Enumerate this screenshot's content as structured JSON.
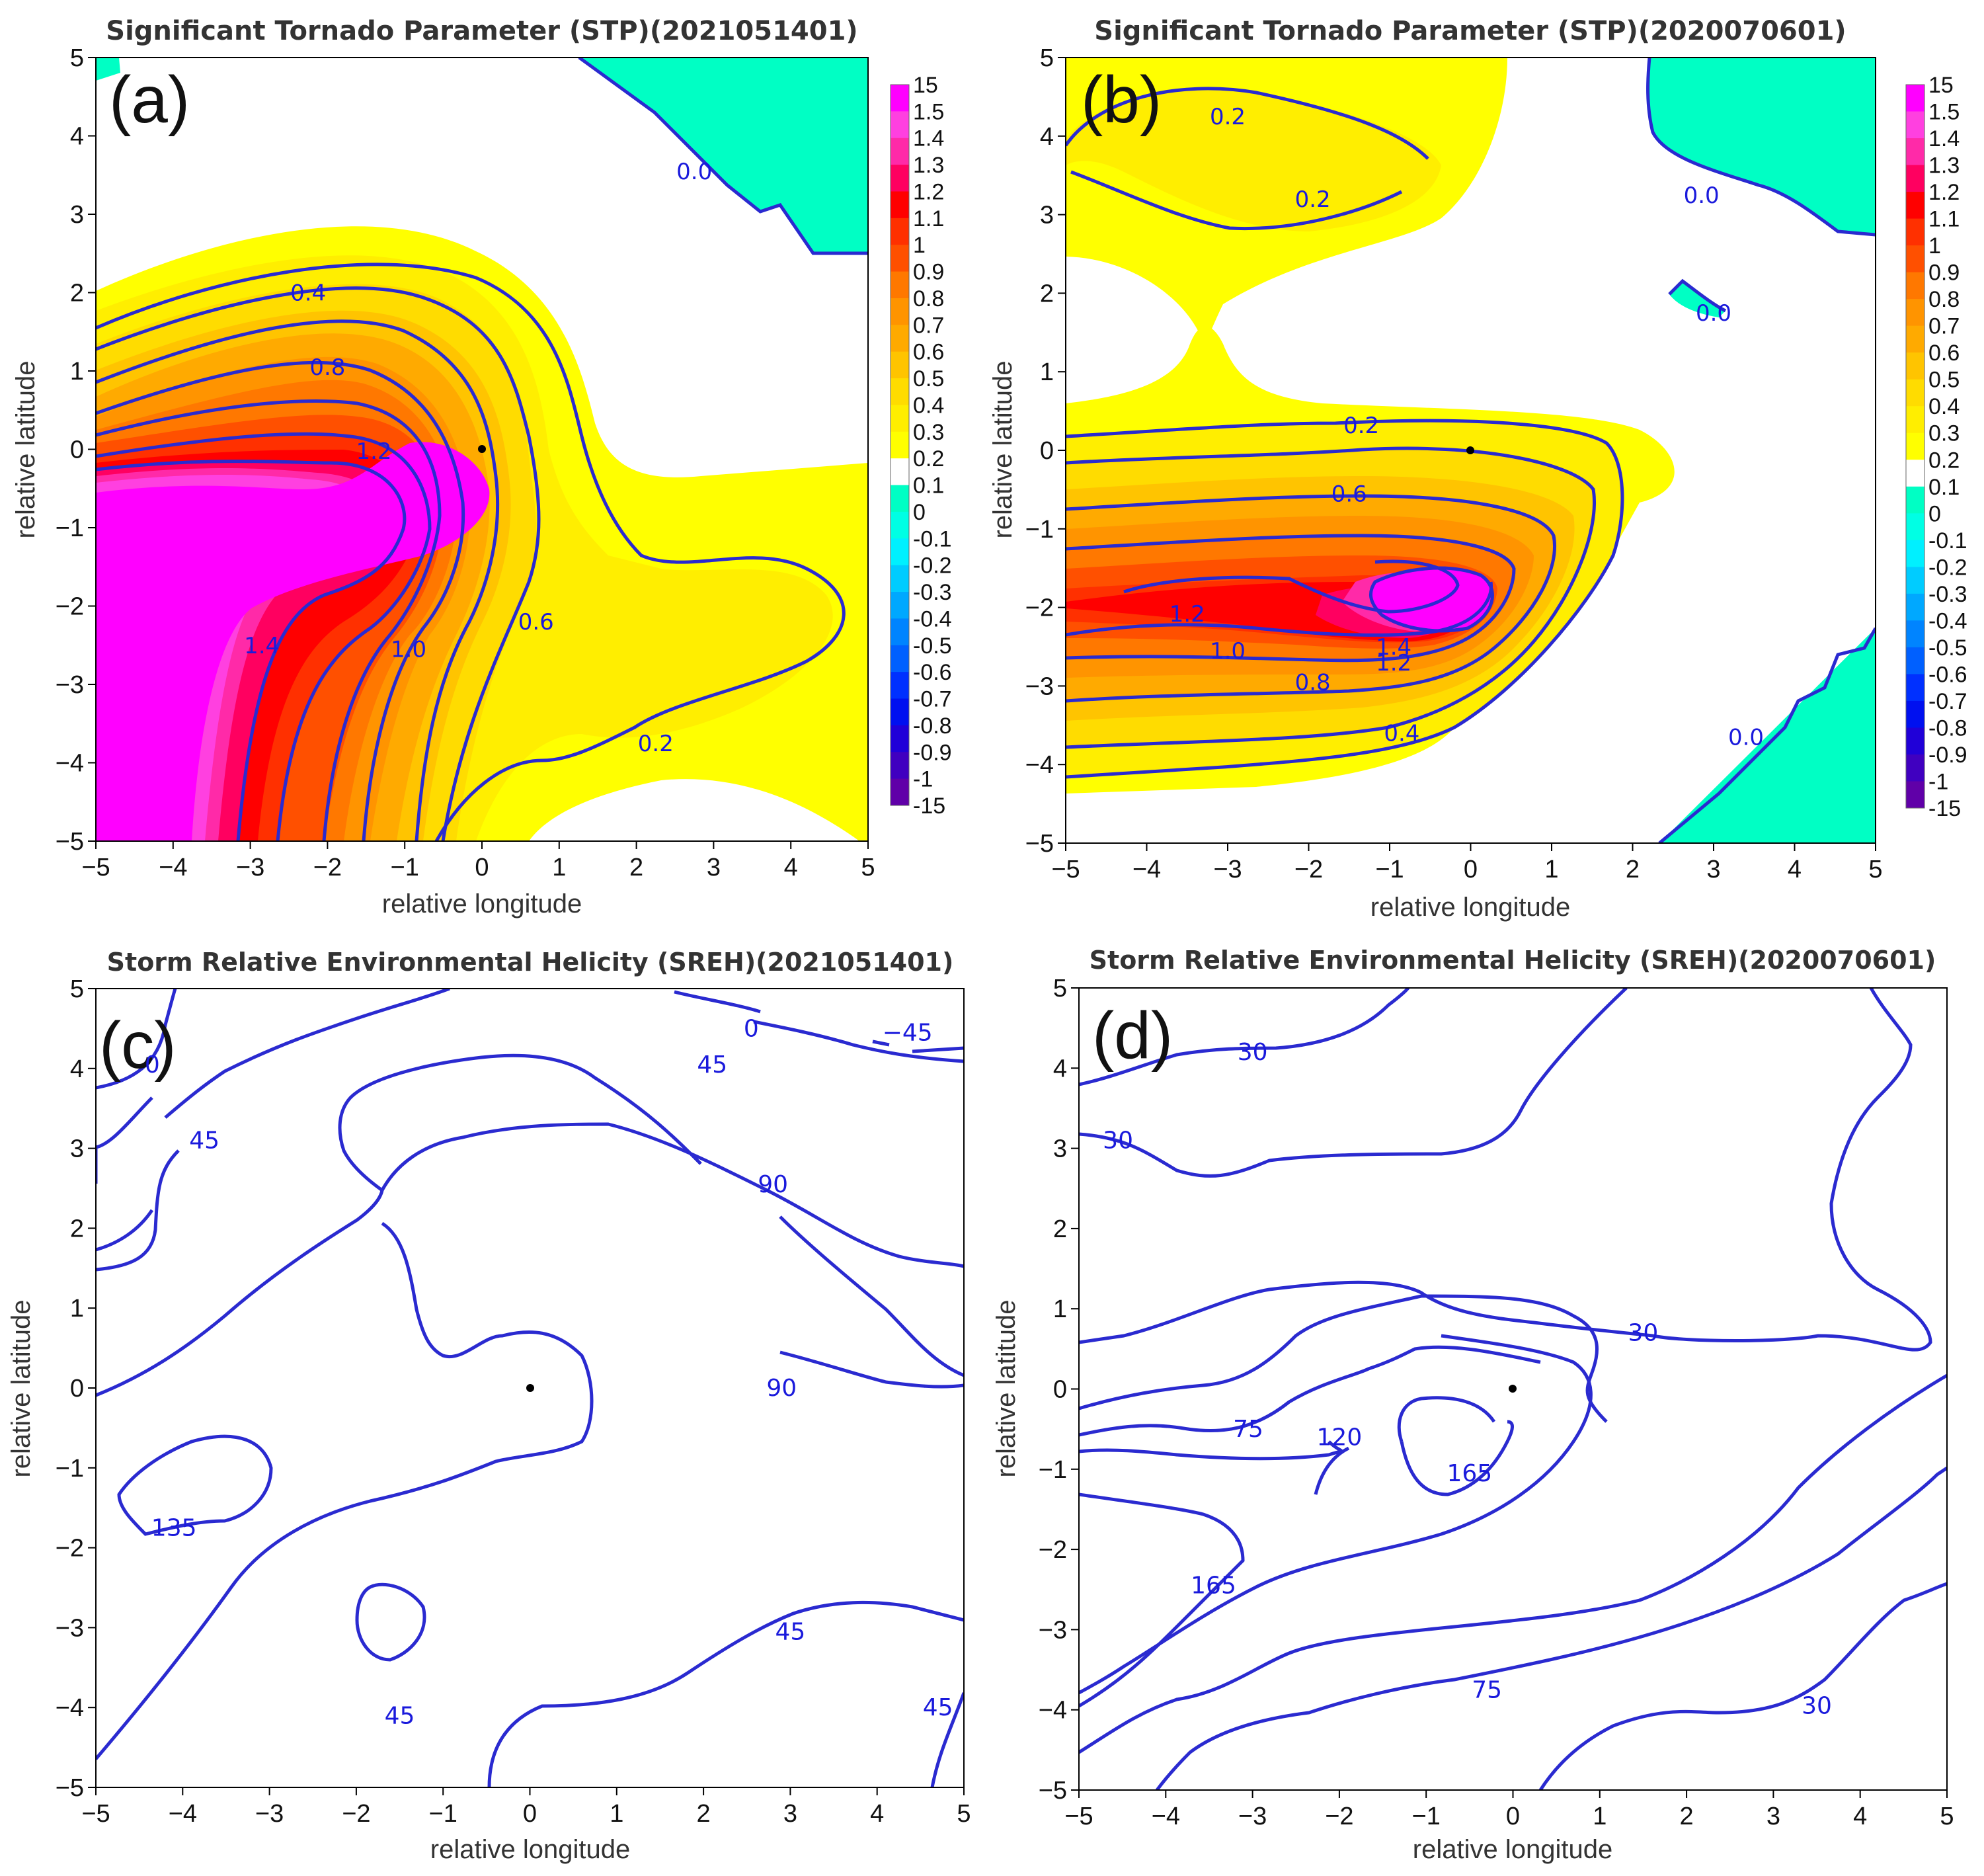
{
  "figure": {
    "colors": {
      "contour_line": "#2a2ad0",
      "label": "#1a1adc",
      "zero_fill": "#00ffc4",
      "magenta": "#ff00ff"
    }
  },
  "stp_colorbar": {
    "levels": [
      "15",
      "1.5",
      "1.4",
      "1.3",
      "1.2",
      "1.1",
      "1",
      "0.9",
      "0.8",
      "0.7",
      "0.6",
      "0.5",
      "0.4",
      "0.3",
      "0.2",
      "0.1",
      "0",
      "-0.1",
      "-0.2",
      "-0.3",
      "-0.4",
      "-0.5",
      "-0.6",
      "-0.7",
      "-0.8",
      "-0.9",
      "-1",
      "-15"
    ],
    "colors": [
      "#ff00ff",
      "#ff40e0",
      "#ff2aa8",
      "#ff0060",
      "#ff0000",
      "#ff3000",
      "#ff5000",
      "#ff7800",
      "#ff9400",
      "#ffaa00",
      "#ffc400",
      "#ffdc00",
      "#ffee00",
      "#ffff00",
      "#ffffff",
      "#00ffc4",
      "#00ffe4",
      "#00f0ff",
      "#00ccff",
      "#00a8ff",
      "#0084ff",
      "#0060ff",
      "#0030ff",
      "#0010f0",
      "#2000d8",
      "#4000c0",
      "#6000a8"
    ]
  },
  "chart_data": [
    {
      "type": "contourf",
      "panel_letter": "(a)",
      "title": "Significant Tornado Parameter (STP)(2021051401)",
      "xlabel": "relative longitude",
      "ylabel": "relative latitude",
      "xlim": [
        -5,
        5
      ],
      "ylim": [
        -5,
        5
      ],
      "xticks": [
        "−5",
        "−4",
        "−3",
        "−2",
        "−1",
        "0",
        "1",
        "2",
        "3",
        "4",
        "5"
      ],
      "yticks": [
        "−5",
        "−4",
        "−3",
        "−2",
        "−1",
        "0",
        "1",
        "2",
        "3",
        "4",
        "5"
      ],
      "storm_center": [
        0,
        0
      ],
      "regions": [
        {
          "value": 0.0,
          "label": "0.0",
          "location": "upper-right corner (x 1.3 to 5, y 2.5 to 5)"
        },
        {
          "value": 0.0,
          "label": "",
          "location": "top-left corner sliver"
        },
        {
          "value": 0.2,
          "label": "0.2",
          "location": "broad yellow band extending east to x≈4.8"
        },
        {
          "value": 0.4,
          "label": "0.4"
        },
        {
          "value": 0.6,
          "label": "0.6"
        },
        {
          "value": 0.8,
          "label": "0.8"
        },
        {
          "value": 1.0,
          "label": "1.0"
        },
        {
          "value": 1.2,
          "label": "1.2"
        },
        {
          "value": 1.4,
          "label": "1.4",
          "location": "southwest quadrant, max >1.5 (magenta)"
        }
      ],
      "contour_labels": [
        {
          "text": "0.0",
          "x": 2.75,
          "y": 3.55
        },
        {
          "text": "0.4",
          "x": -2.25,
          "y": 2.0
        },
        {
          "text": "0.8",
          "x": -2.0,
          "y": 1.05
        },
        {
          "text": "1.2",
          "x": -1.4,
          "y": -0.02
        },
        {
          "text": "1.4",
          "x": -2.85,
          "y": -2.5
        },
        {
          "text": "1.0",
          "x": -0.95,
          "y": -2.55
        },
        {
          "text": "0.6",
          "x": 0.7,
          "y": -2.2
        },
        {
          "text": "0.2",
          "x": 2.25,
          "y": -3.75
        }
      ]
    },
    {
      "type": "contourf",
      "panel_letter": "(b)",
      "title": "Significant Tornado Parameter (STP)(2020070601)",
      "xlabel": "relative longitude",
      "ylabel": "relative latitude",
      "xlim": [
        -5,
        5
      ],
      "ylim": [
        -5,
        5
      ],
      "xticks": [
        "−5",
        "−4",
        "−3",
        "−2",
        "−1",
        "0",
        "1",
        "2",
        "3",
        "4",
        "5"
      ],
      "yticks": [
        "−5",
        "−4",
        "−3",
        "−2",
        "−1",
        "0",
        "1",
        "2",
        "3",
        "4",
        "5"
      ],
      "storm_center": [
        0,
        0
      ],
      "regions": [
        {
          "value": 0.0,
          "label": "0.0",
          "location": "upper-right corner"
        },
        {
          "value": 0.0,
          "label": "0.0",
          "location": "small island near (2.8, 1.8)"
        },
        {
          "value": 0.0,
          "label": "0.0",
          "location": "lower-right corner"
        },
        {
          "value": 0.2,
          "label": "0.2",
          "location": "northwest yellow lobe"
        },
        {
          "value": 0.2,
          "label": "0.2"
        },
        {
          "value": 0.4,
          "label": "0.4"
        },
        {
          "value": 0.6,
          "label": "0.6"
        },
        {
          "value": 0.8,
          "label": "0.8"
        },
        {
          "value": 1.0,
          "label": "1.0"
        },
        {
          "value": 1.2,
          "label": "1.2"
        },
        {
          "value": 1.4,
          "label": "1.4",
          "location": "max near (-0.5, -2)"
        }
      ],
      "contour_labels": [
        {
          "text": "0.2",
          "x": -3.0,
          "y": 4.25
        },
        {
          "text": "0.2",
          "x": -1.95,
          "y": 3.2
        },
        {
          "text": "0.0",
          "x": 2.85,
          "y": 3.25
        },
        {
          "text": "0.0",
          "x": 3.0,
          "y": 1.75
        },
        {
          "text": "0.2",
          "x": -1.35,
          "y": 0.32
        },
        {
          "text": "0.6",
          "x": -1.5,
          "y": -0.55
        },
        {
          "text": "1.2",
          "x": -3.5,
          "y": -2.08
        },
        {
          "text": "1.4",
          "x": -0.95,
          "y": -2.5
        },
        {
          "text": "1.2",
          "x": -0.95,
          "y": -2.7
        },
        {
          "text": "1.0",
          "x": -3.0,
          "y": -2.55
        },
        {
          "text": "0.8",
          "x": -1.95,
          "y": -2.95
        },
        {
          "text": "0.4",
          "x": -0.85,
          "y": -3.6
        },
        {
          "text": "0.0",
          "x": 3.4,
          "y": -3.65
        }
      ]
    },
    {
      "type": "contour",
      "panel_letter": "(c)",
      "title": "Storm Relative Environmental Helicity (SREH)(2021051401)",
      "xlabel": "relative longitude",
      "ylabel": "relative latitude",
      "xlim": [
        -5,
        5
      ],
      "ylim": [
        -5,
        5
      ],
      "xticks": [
        "−5",
        "−4",
        "−3",
        "−2",
        "−1",
        "0",
        "1",
        "2",
        "3",
        "4",
        "5"
      ],
      "yticks": [
        "−5",
        "−4",
        "−3",
        "−2",
        "−1",
        "0",
        "1",
        "2",
        "3",
        "4",
        "5"
      ],
      "storm_center": [
        0,
        0
      ],
      "contour_levels": [
        -45,
        0,
        45,
        90,
        135
      ],
      "contour_labels": [
        {
          "text": "0",
          "x": -4.35,
          "y": 4.05
        },
        {
          "text": "45",
          "x": -3.75,
          "y": 3.1
        },
        {
          "text": "0",
          "x": 2.55,
          "y": 4.5
        },
        {
          "text": "−45",
          "x": 4.35,
          "y": 4.45
        },
        {
          "text": "45",
          "x": 2.1,
          "y": 4.05
        },
        {
          "text": "90",
          "x": 2.8,
          "y": 2.55
        },
        {
          "text": "90",
          "x": 2.9,
          "y": 0.0
        },
        {
          "text": "135",
          "x": -4.1,
          "y": -1.75
        },
        {
          "text": "45",
          "x": 3.0,
          "y": -3.05
        },
        {
          "text": "45",
          "x": -1.5,
          "y": -4.1
        },
        {
          "text": "45",
          "x": 4.7,
          "y": -4.0
        }
      ]
    },
    {
      "type": "contour",
      "panel_letter": "(d)",
      "title": "Storm Relative Environmental Helicity (SREH)(2020070601)",
      "xlabel": "relative longitude",
      "ylabel": "relative latitude",
      "xlim": [
        -5,
        5
      ],
      "ylim": [
        -5,
        5
      ],
      "xticks": [
        "−5",
        "−4",
        "−3",
        "−2",
        "−1",
        "0",
        "1",
        "2",
        "3",
        "4",
        "5"
      ],
      "yticks": [
        "−5",
        "−4",
        "−3",
        "−2",
        "−1",
        "0",
        "1",
        "2",
        "3",
        "4",
        "5"
      ],
      "storm_center": [
        0,
        0
      ],
      "contour_levels": [
        30,
        75,
        120,
        165
      ],
      "contour_labels": [
        {
          "text": "30",
          "x": -3.0,
          "y": 4.2
        },
        {
          "text": "30",
          "x": -4.55,
          "y": 3.1
        },
        {
          "text": "30",
          "x": 1.5,
          "y": 0.7
        },
        {
          "text": "75",
          "x": -3.05,
          "y": -0.5
        },
        {
          "text": "120",
          "x": -2.0,
          "y": -0.6
        },
        {
          "text": "165",
          "x": -0.5,
          "y": -1.05
        },
        {
          "text": "165",
          "x": -3.45,
          "y": -2.45
        },
        {
          "text": "75",
          "x": -0.3,
          "y": -3.75
        },
        {
          "text": "30",
          "x": 3.5,
          "y": -3.95
        }
      ]
    }
  ]
}
